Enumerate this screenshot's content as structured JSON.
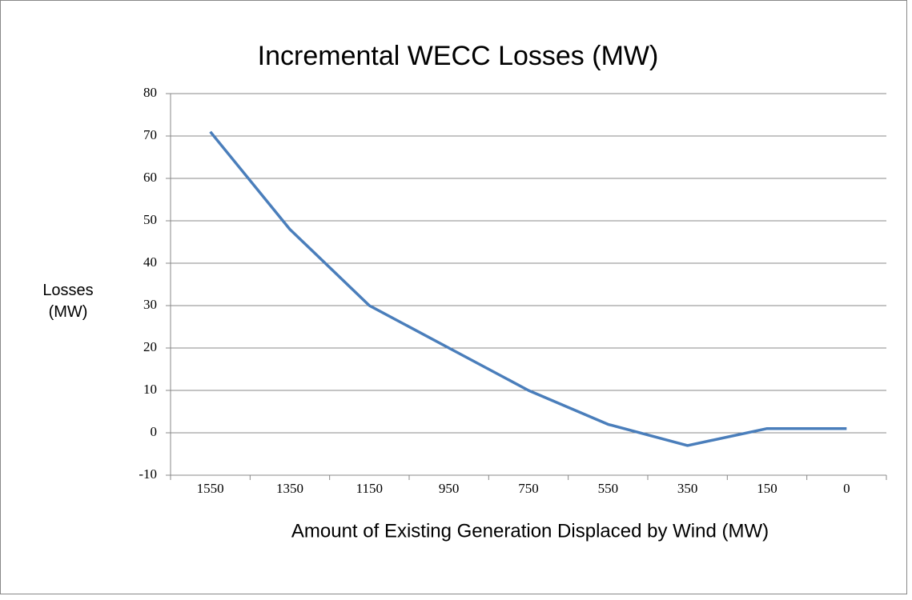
{
  "chart_data": {
    "type": "line",
    "title": "Incremental WECC Losses (MW)",
    "xlabel": "Amount of Existing Generation Displaced by Wind (MW)",
    "ylabel": "Losses (MW)",
    "categories": [
      "1550",
      "1350",
      "1150",
      "950",
      "750",
      "550",
      "350",
      "150",
      "0"
    ],
    "series": [
      {
        "name": "Losses",
        "color": "#4a7ebb",
        "values": [
          71,
          48,
          30,
          20,
          10,
          2,
          -3,
          1,
          1
        ]
      }
    ],
    "ylim": [
      -10,
      80
    ],
    "yticks": [
      -10,
      0,
      10,
      20,
      30,
      40,
      50,
      60,
      70,
      80
    ],
    "grid": true
  }
}
